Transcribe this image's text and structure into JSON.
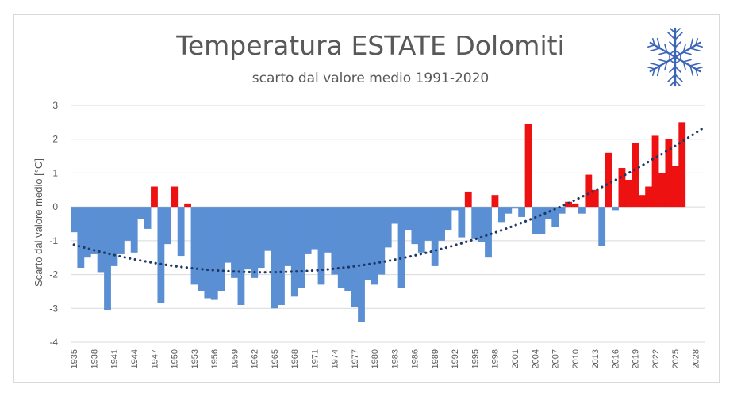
{
  "chart_data": {
    "type": "bar",
    "title": "Temperatura ESTATE Dolomiti",
    "subtitle": "scarto dal valore medio 1991-2020",
    "ylabel": "Scarto dal valore medio [°C]",
    "xlabel": "",
    "ylim": [
      -4,
      3
    ],
    "yticks": [
      -4,
      -3,
      -2,
      -1,
      0,
      1,
      2,
      3
    ],
    "xlim": [
      1935,
      2030
    ],
    "xticks": [
      1935,
      1938,
      1941,
      1944,
      1947,
      1950,
      1953,
      1956,
      1959,
      1962,
      1965,
      1968,
      1971,
      1974,
      1977,
      1980,
      1983,
      1986,
      1989,
      1992,
      1995,
      1998,
      2001,
      2004,
      2007,
      2010,
      2013,
      2016,
      2019,
      2022,
      2025,
      2028
    ],
    "grid": true,
    "trendline": "polynomial (dotted)",
    "colors": {
      "negative": "#5b8fd4",
      "positive": "#ee1111",
      "trend": "#1f3864",
      "grid": "#d9d9d9",
      "text": "#595959"
    },
    "icon": "snowflake-icon",
    "x": [
      1935,
      1936,
      1937,
      1938,
      1939,
      1940,
      1941,
      1942,
      1943,
      1944,
      1945,
      1946,
      1947,
      1948,
      1949,
      1950,
      1951,
      1952,
      1953,
      1954,
      1955,
      1956,
      1957,
      1958,
      1959,
      1960,
      1961,
      1962,
      1963,
      1964,
      1965,
      1966,
      1967,
      1968,
      1969,
      1970,
      1971,
      1972,
      1973,
      1974,
      1975,
      1976,
      1977,
      1978,
      1979,
      1980,
      1981,
      1982,
      1983,
      1984,
      1985,
      1986,
      1987,
      1988,
      1989,
      1990,
      1991,
      1992,
      1993,
      1994,
      1995,
      1996,
      1997,
      1998,
      1999,
      2000,
      2001,
      2002,
      2003,
      2004,
      2005,
      2006,
      2007,
      2008,
      2009,
      2010,
      2011,
      2012,
      2013,
      2014,
      2015,
      2016,
      2017,
      2018,
      2019,
      2020,
      2021,
      2022,
      2023,
      2024,
      2025,
      2026
    ],
    "values": [
      -0.75,
      -1.8,
      -1.5,
      -1.4,
      -1.95,
      -3.05,
      -1.75,
      -1.4,
      -1.0,
      -1.35,
      -0.35,
      -0.65,
      0.6,
      -2.85,
      -1.1,
      0.6,
      -1.45,
      0.1,
      -2.3,
      -2.5,
      -2.7,
      -2.75,
      -2.5,
      -1.65,
      -2.1,
      -2.9,
      -1.85,
      -2.1,
      -1.8,
      -1.3,
      -3.0,
      -2.9,
      -1.75,
      -2.65,
      -2.4,
      -1.4,
      -1.25,
      -2.3,
      -1.35,
      -2.0,
      -2.4,
      -2.5,
      -2.95,
      -3.4,
      -2.15,
      -2.3,
      -2.0,
      -1.2,
      -0.5,
      -2.4,
      -0.7,
      -1.1,
      -1.35,
      -1.0,
      -1.75,
      -1.0,
      -0.7,
      -0.1,
      -0.9,
      0.45,
      -0.95,
      -1.05,
      -1.5,
      0.35,
      -0.45,
      -0.2,
      -0.05,
      -0.3,
      2.45,
      -0.8,
      -0.8,
      -0.35,
      -0.6,
      -0.2,
      0.15,
      0.1,
      -0.2,
      0.95,
      0.5,
      -1.15,
      1.6,
      -0.1,
      1.15,
      0.8,
      1.9,
      0.35,
      0.6,
      2.1,
      1.0,
      2.0,
      1.2,
      2.5
    ]
  }
}
